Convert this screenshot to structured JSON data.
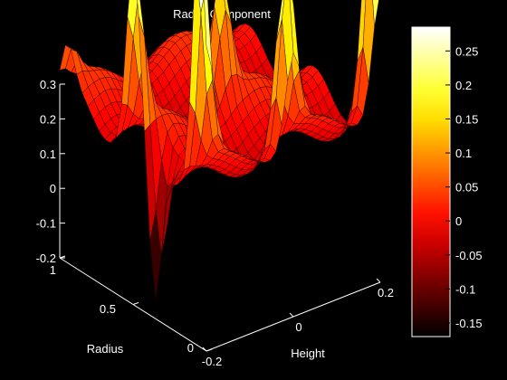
{
  "chart_data": {
    "type": "surface",
    "title": "Radial Component",
    "xlabel": "Height",
    "ylabel": "Radius",
    "zlabel": "",
    "xlim": [
      -0.2,
      0.2
    ],
    "ylim": [
      0,
      1
    ],
    "zlim": [
      -0.2,
      0.3
    ],
    "x_ticks": [
      -0.2,
      0,
      0.2
    ],
    "x_tick_labels": [
      "-0.2",
      "0",
      "0.2"
    ],
    "y_ticks": [
      0,
      0.5,
      1
    ],
    "y_tick_labels": [
      "0",
      "0.5",
      "1"
    ],
    "z_ticks": [
      -0.2,
      -0.1,
      0,
      0.1,
      0.2,
      0.3
    ],
    "z_tick_labels": [
      "-0.2",
      "-0.1",
      "0",
      "0.1",
      "0.2",
      "0.3"
    ],
    "colormap": "hot",
    "colorbar": {
      "range": [
        -0.17,
        0.285
      ],
      "ticks": [
        -0.15,
        -0.1,
        -0.05,
        0,
        0.05,
        0.1,
        0.15,
        0.2,
        0.25
      ],
      "tick_labels": [
        "-0.15",
        "-0.1",
        "-0.05",
        "0",
        "0.05",
        "0.1",
        "0.15",
        "0.2",
        "0.25"
      ]
    },
    "grid": false,
    "peaks": [
      {
        "height": -0.2,
        "radius": 0.95,
        "value": 0.05
      },
      {
        "height": -0.2,
        "radius": 0.5,
        "value": 0.2
      },
      {
        "height": -0.2,
        "radius": 0.05,
        "value": 0.285
      },
      {
        "height": -0.2,
        "radius": 0.35,
        "value": -0.17
      },
      {
        "height": 0.0,
        "radius": 0.5,
        "value": 0.15
      },
      {
        "height": 0.0,
        "radius": 0.05,
        "value": 0.2
      },
      {
        "height": 0.2,
        "radius": 0.05,
        "value": 0.27
      }
    ]
  },
  "colors": {
    "background": "#000000",
    "axis": "#ffffff",
    "mesh": "#1a0000"
  }
}
